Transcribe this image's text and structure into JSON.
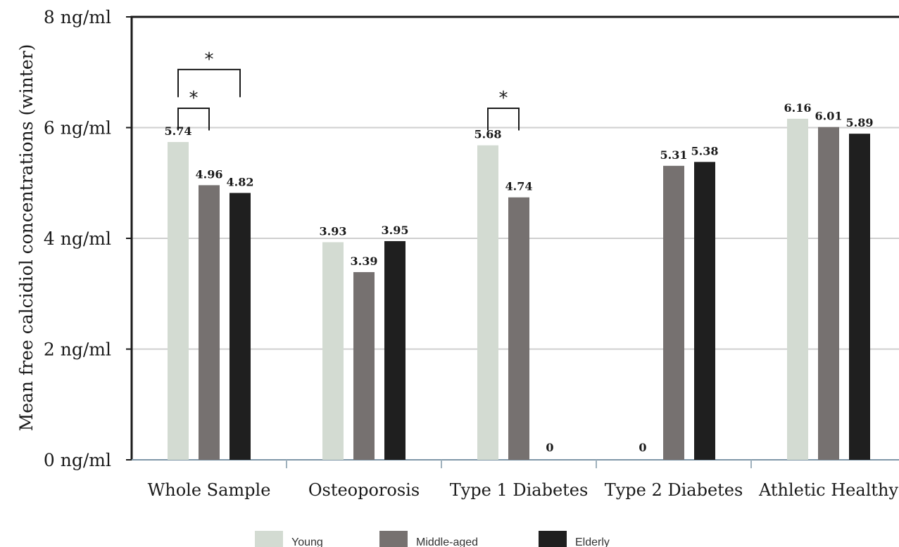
{
  "chart_data": {
    "type": "bar",
    "ylabel": "Mean free calcidiol concentrations (winter)",
    "ylim": [
      0,
      8
    ],
    "yticks": [
      {
        "value": 0,
        "label": "0 ng/ml"
      },
      {
        "value": 2,
        "label": "2 ng/ml"
      },
      {
        "value": 4,
        "label": "4 ng/ml"
      },
      {
        "value": 6,
        "label": "6 ng/ml"
      },
      {
        "value": 8,
        "label": "8 ng/ml"
      }
    ],
    "grid": true,
    "legend_position": "bottom",
    "categories": [
      "Whole Sample",
      "Osteoporosis",
      "Type 1 Diabetes",
      "Type 2 Diabetes",
      "Athletic Healthy"
    ],
    "series": [
      {
        "name": "Young",
        "color": "#d3dbd2",
        "values": [
          5.74,
          3.93,
          5.68,
          0,
          6.16
        ],
        "labels": [
          "5.74",
          "3.93",
          "5.68",
          "0",
          "6.16"
        ]
      },
      {
        "name": "Middle-aged",
        "color": "#767170",
        "values": [
          4.96,
          3.39,
          4.74,
          5.31,
          6.01
        ],
        "labels": [
          "4.96",
          "3.39",
          "4.74",
          "5.31",
          "6.01"
        ]
      },
      {
        "name": "Elderly",
        "color": "#1f1f1f",
        "values": [
          4.82,
          3.95,
          0,
          5.38,
          5.89
        ],
        "labels": [
          "4.82",
          "3.95",
          "0",
          "5.38",
          "5.89"
        ]
      }
    ],
    "significance": [
      {
        "category": 0,
        "from_series": 0,
        "to_series": 1,
        "level": 1,
        "symbol": "*"
      },
      {
        "category": 0,
        "from_series": 0,
        "to_series": 2,
        "level": 2,
        "symbol": "*"
      },
      {
        "category": 2,
        "from_series": 0,
        "to_series": 1,
        "level": 1,
        "symbol": "*"
      }
    ]
  }
}
